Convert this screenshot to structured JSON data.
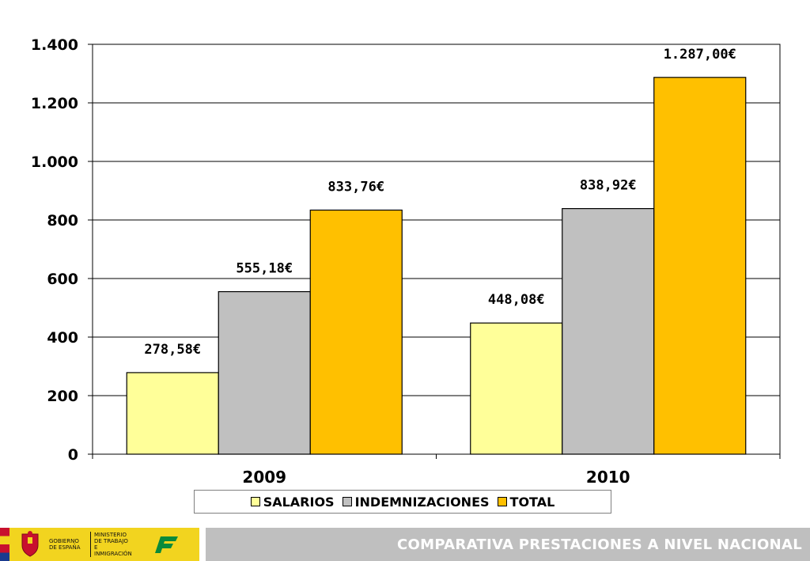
{
  "chart_data": {
    "type": "bar",
    "categories": [
      "2009",
      "2010"
    ],
    "series": [
      {
        "name": "SALARIOS",
        "values": [
          278.58,
          448.08
        ],
        "labels": [
          "278,58€",
          "448,08€"
        ],
        "color": "#FFFF99"
      },
      {
        "name": "INDEMNIZACIONES",
        "values": [
          555.18,
          838.92
        ],
        "labels": [
          "555,18€",
          "838,92€"
        ],
        "color": "#C0C0C0"
      },
      {
        "name": "TOTAL",
        "values": [
          833.76,
          1287.0
        ],
        "labels": [
          "833,76€",
          "1.287,00€"
        ],
        "color": "#FFC000"
      }
    ],
    "ylim": [
      0,
      1400
    ],
    "yticks": [
      0,
      200,
      400,
      600,
      800,
      1000,
      1200,
      1400
    ],
    "ytick_labels": [
      "0",
      "200",
      "400",
      "600",
      "800",
      "1.000",
      "1.200",
      "1.400"
    ],
    "grid": true,
    "legend_position": "bottom"
  },
  "legend": {
    "items": [
      {
        "label": "SALARIOS",
        "color": "#FFFF99"
      },
      {
        "label": "INDEMNIZACIONES",
        "color": "#C0C0C0"
      },
      {
        "label": "TOTAL",
        "color": "#FFC000"
      }
    ]
  },
  "footer": {
    "title": "COMPARATIVA PRESTACIONES A NIVEL NACIONAL",
    "bar_color": "#BFBFBF",
    "logo_band_color": "#F2D41F",
    "gobierno_text": "GOBIERNO DE ESPAÑA",
    "ministerio_text": "MINISTERIO DE TRABAJO E INMIGRACIÓN",
    "icons": [
      "coat-of-arms-icon",
      "fogasa-logo-icon"
    ]
  }
}
